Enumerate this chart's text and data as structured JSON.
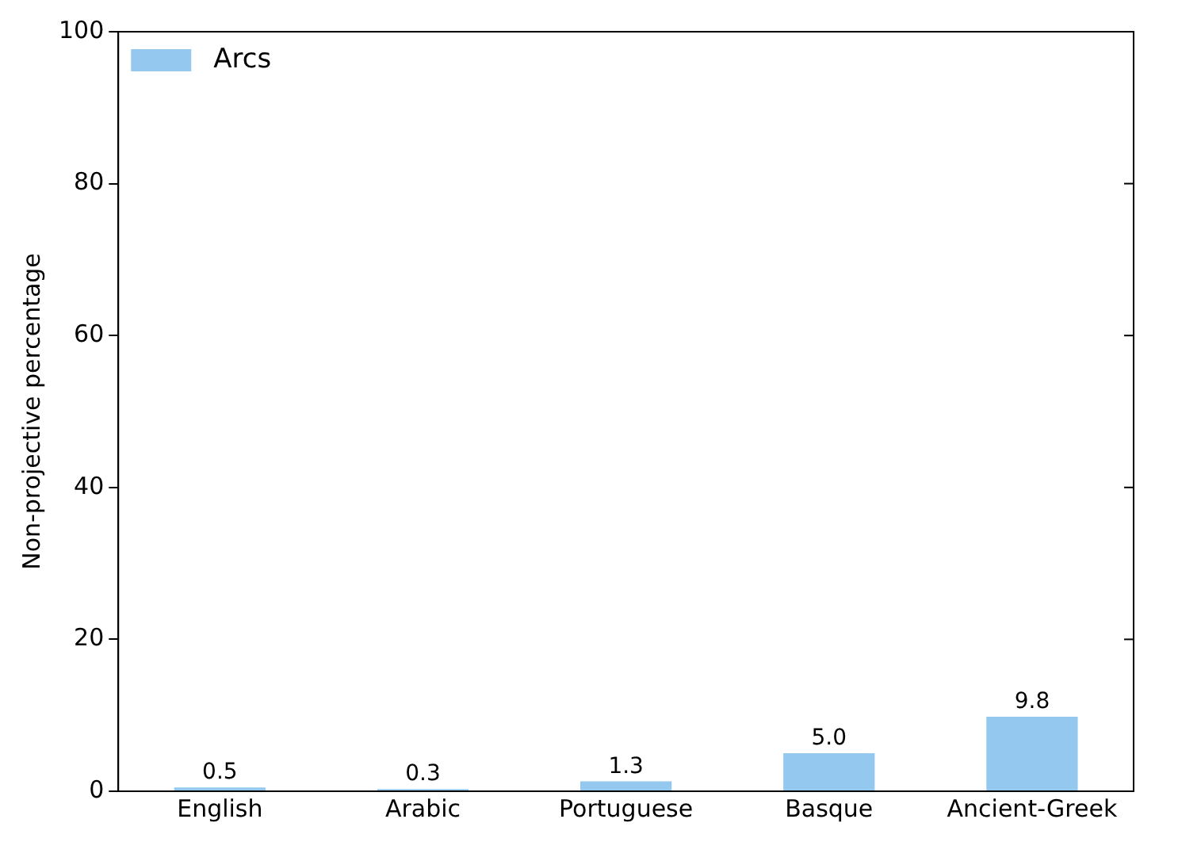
{
  "chart_data": {
    "type": "bar",
    "categories": [
      "English",
      "Arabic",
      "Portuguese",
      "Basque",
      "Ancient-Greek"
    ],
    "series": [
      {
        "name": "Arcs",
        "color": "#94c8ee",
        "values": [
          0.5,
          0.3,
          1.3,
          5.0,
          9.8
        ],
        "value_labels": [
          "0.5",
          "0.3",
          "1.3",
          "5.0",
          "9.8"
        ]
      }
    ],
    "ylabel": "Non-projective percentage",
    "ylim": [
      0,
      100
    ],
    "yticks": [
      0,
      20,
      40,
      60,
      80,
      100
    ],
    "grid": false,
    "legend": "top left"
  }
}
